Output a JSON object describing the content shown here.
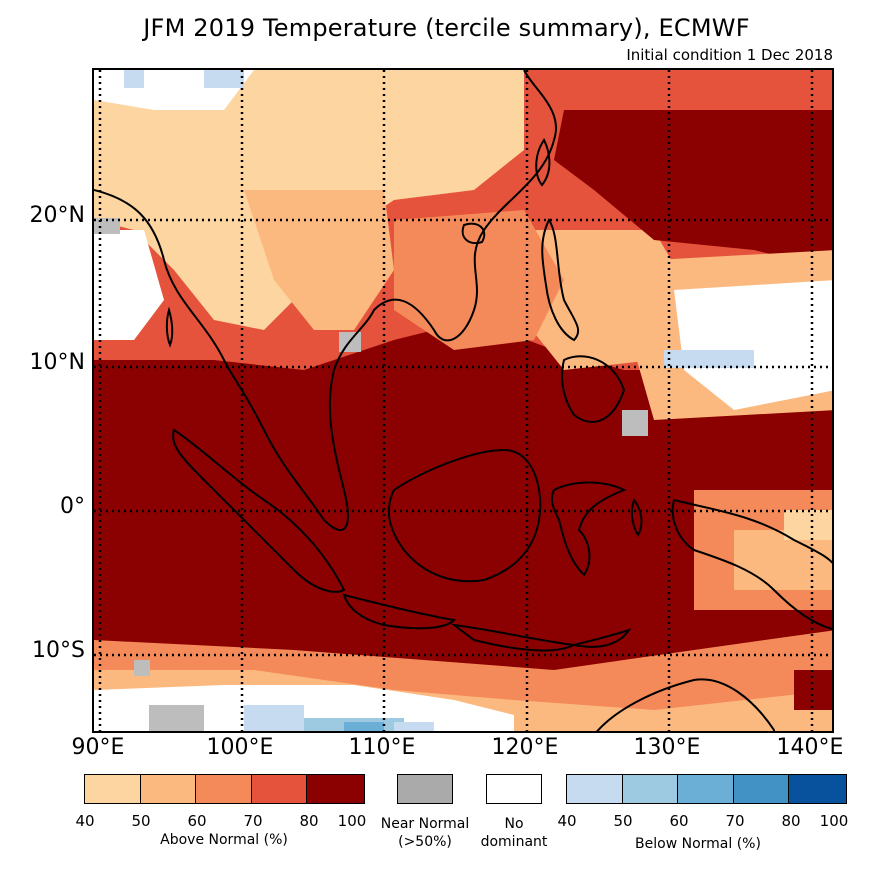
{
  "title": "JFM 2019 Temperature (tercile summary), ECMWF",
  "subtitle": "Initial condition 1 Dec 2018",
  "axes": {
    "lat_labels": [
      "20°N",
      "10°N",
      "0°",
      "10°S"
    ],
    "lon_labels": [
      "90°E",
      "100°E",
      "110°E",
      "120°E",
      "130°E",
      "140°E"
    ]
  },
  "legend": {
    "above": {
      "label": "Above Normal (%)",
      "ticks": [
        "40",
        "50",
        "60",
        "70",
        "80",
        "100"
      ],
      "colors": [
        "#fdd5a0",
        "#fcb97f",
        "#f48a5a",
        "#e5533c",
        "#8b0000"
      ]
    },
    "near": {
      "line1": "Near Normal",
      "line2": "(>50%)",
      "color": "#aaaaaa"
    },
    "none": {
      "line1": "No",
      "line2": "dominant",
      "color": "#ffffff"
    },
    "below": {
      "label": "Below Normal (%)",
      "ticks": [
        "40",
        "50",
        "60",
        "70",
        "80",
        "100"
      ],
      "colors": [
        "#c6dbef",
        "#9ecae1",
        "#6baed6",
        "#4292c6",
        "#08519c"
      ]
    }
  },
  "map_colors": {
    "deep": "#8b0000",
    "high": "#e5533c",
    "mid": "#f48a5a",
    "low": "#fcb97f",
    "pale": "#fdd5a0",
    "white": "#ffffff",
    "gray": "#bdbdbd",
    "blue1": "#c6dbef",
    "blue2": "#9ecae1",
    "blue3": "#6baed6"
  }
}
